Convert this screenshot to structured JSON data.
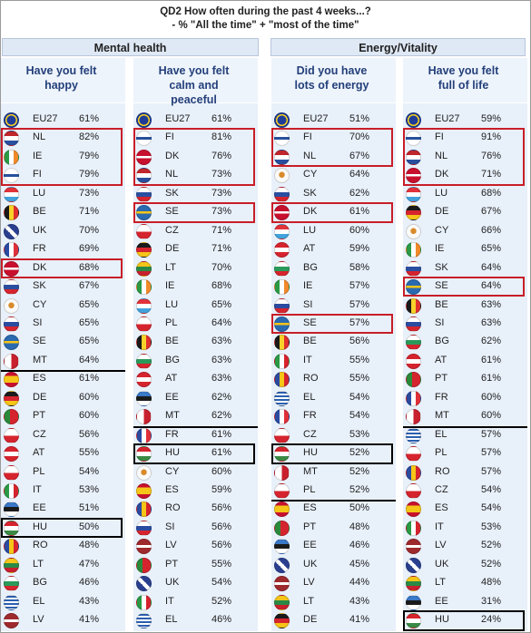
{
  "title_line1": "QD2 How often during the past 4 weeks...?",
  "title_line2": "- % \"All the time\" + \"most of the time\"",
  "groups": {
    "mental": "Mental health",
    "energy": "Energy/Vitality"
  },
  "columns": [
    {
      "header": "Have you felt happy"
    },
    {
      "header": "Have you felt calm and peaceful"
    },
    {
      "header": "Did you have lots of energy"
    },
    {
      "header": "Have you felt full of life"
    }
  ],
  "chart_data": {
    "type": "table",
    "title": "QD2 How often during the past 4 weeks...? - % \"All the time\" + \"most of the time\"",
    "series": [
      {
        "name": "Have you felt happy",
        "rows": [
          {
            "c": "EU27",
            "v": 61
          },
          {
            "c": "NL",
            "v": 82
          },
          {
            "c": "IE",
            "v": 79
          },
          {
            "c": "FI",
            "v": 79
          },
          {
            "c": "LU",
            "v": 73
          },
          {
            "c": "BE",
            "v": 71
          },
          {
            "c": "UK",
            "v": 70
          },
          {
            "c": "FR",
            "v": 69
          },
          {
            "c": "DK",
            "v": 68
          },
          {
            "c": "SK",
            "v": 67
          },
          {
            "c": "CY",
            "v": 65
          },
          {
            "c": "SI",
            "v": 65
          },
          {
            "c": "SE",
            "v": 65
          },
          {
            "c": "MT",
            "v": 64
          },
          {
            "c": "ES",
            "v": 61
          },
          {
            "c": "DE",
            "v": 60
          },
          {
            "c": "PT",
            "v": 60
          },
          {
            "c": "CZ",
            "v": 56
          },
          {
            "c": "AT",
            "v": 55
          },
          {
            "c": "PL",
            "v": 54
          },
          {
            "c": "IT",
            "v": 53
          },
          {
            "c": "EE",
            "v": 51
          },
          {
            "c": "HU",
            "v": 50
          },
          {
            "c": "RO",
            "v": 48
          },
          {
            "c": "LT",
            "v": 47
          },
          {
            "c": "BG",
            "v": 46
          },
          {
            "c": "EL",
            "v": 43
          },
          {
            "c": "LV",
            "v": 41
          }
        ]
      },
      {
        "name": "Have you felt calm and peaceful",
        "rows": [
          {
            "c": "EU27",
            "v": 61
          },
          {
            "c": "FI",
            "v": 81
          },
          {
            "c": "DK",
            "v": 76
          },
          {
            "c": "NL",
            "v": 73
          },
          {
            "c": "SK",
            "v": 73
          },
          {
            "c": "SE",
            "v": 73
          },
          {
            "c": "CZ",
            "v": 71
          },
          {
            "c": "DE",
            "v": 71
          },
          {
            "c": "LT",
            "v": 70
          },
          {
            "c": "IE",
            "v": 68
          },
          {
            "c": "LU",
            "v": 65
          },
          {
            "c": "PL",
            "v": 64
          },
          {
            "c": "BE",
            "v": 63
          },
          {
            "c": "BG",
            "v": 63
          },
          {
            "c": "AT",
            "v": 63
          },
          {
            "c": "EE",
            "v": 62
          },
          {
            "c": "MT",
            "v": 62
          },
          {
            "c": "FR",
            "v": 61
          },
          {
            "c": "HU",
            "v": 61
          },
          {
            "c": "CY",
            "v": 60
          },
          {
            "c": "ES",
            "v": 59
          },
          {
            "c": "RO",
            "v": 56
          },
          {
            "c": "SI",
            "v": 56
          },
          {
            "c": "LV",
            "v": 56
          },
          {
            "c": "PT",
            "v": 55
          },
          {
            "c": "UK",
            "v": 54
          },
          {
            "c": "IT",
            "v": 52
          },
          {
            "c": "EL",
            "v": 46
          }
        ]
      },
      {
        "name": "Did you have lots of energy",
        "rows": [
          {
            "c": "EU27",
            "v": 51
          },
          {
            "c": "FI",
            "v": 70
          },
          {
            "c": "NL",
            "v": 67
          },
          {
            "c": "CY",
            "v": 64
          },
          {
            "c": "SK",
            "v": 62
          },
          {
            "c": "DK",
            "v": 61
          },
          {
            "c": "LU",
            "v": 60
          },
          {
            "c": "AT",
            "v": 59
          },
          {
            "c": "BG",
            "v": 58
          },
          {
            "c": "IE",
            "v": 57
          },
          {
            "c": "SI",
            "v": 57
          },
          {
            "c": "SE",
            "v": 57
          },
          {
            "c": "BE",
            "v": 56
          },
          {
            "c": "IT",
            "v": 55
          },
          {
            "c": "RO",
            "v": 55
          },
          {
            "c": "EL",
            "v": 54
          },
          {
            "c": "FR",
            "v": 54
          },
          {
            "c": "CZ",
            "v": 53
          },
          {
            "c": "HU",
            "v": 52
          },
          {
            "c": "MT",
            "v": 52
          },
          {
            "c": "PL",
            "v": 52
          },
          {
            "c": "ES",
            "v": 50
          },
          {
            "c": "PT",
            "v": 48
          },
          {
            "c": "EE",
            "v": 46
          },
          {
            "c": "UK",
            "v": 45
          },
          {
            "c": "LV",
            "v": 44
          },
          {
            "c": "LT",
            "v": 43
          },
          {
            "c": "DE",
            "v": 41
          }
        ]
      },
      {
        "name": "Have you felt full of life",
        "rows": [
          {
            "c": "EU27",
            "v": 59
          },
          {
            "c": "FI",
            "v": 91
          },
          {
            "c": "NL",
            "v": 76
          },
          {
            "c": "DK",
            "v": 71
          },
          {
            "c": "LU",
            "v": 68
          },
          {
            "c": "DE",
            "v": 67
          },
          {
            "c": "CY",
            "v": 66
          },
          {
            "c": "IE",
            "v": 65
          },
          {
            "c": "SK",
            "v": 64
          },
          {
            "c": "SE",
            "v": 64
          },
          {
            "c": "BE",
            "v": 63
          },
          {
            "c": "SI",
            "v": 63
          },
          {
            "c": "BG",
            "v": 62
          },
          {
            "c": "AT",
            "v": 61
          },
          {
            "c": "PT",
            "v": 61
          },
          {
            "c": "FR",
            "v": 60
          },
          {
            "c": "MT",
            "v": 60
          },
          {
            "c": "EL",
            "v": 57
          },
          {
            "c": "PL",
            "v": 57
          },
          {
            "c": "RO",
            "v": 57
          },
          {
            "c": "CZ",
            "v": 54
          },
          {
            "c": "ES",
            "v": 54
          },
          {
            "c": "IT",
            "v": 53
          },
          {
            "c": "LV",
            "v": 52
          },
          {
            "c": "UK",
            "v": 52
          },
          {
            "c": "LT",
            "v": 48
          },
          {
            "c": "EE",
            "v": 31
          },
          {
            "c": "HU",
            "v": 24
          }
        ]
      }
    ]
  }
}
